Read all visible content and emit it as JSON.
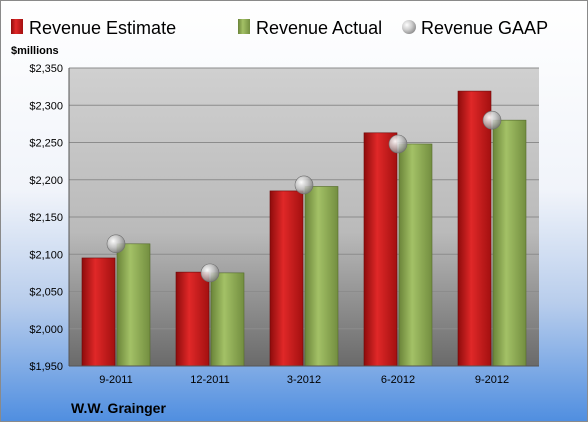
{
  "chart_data": {
    "type": "bar",
    "unit_label": "$millions",
    "company": "W.W. Grainger",
    "categories": [
      "9-2011",
      "12-2011",
      "3-2012",
      "6-2012",
      "9-2012"
    ],
    "series": [
      {
        "name": "Revenue Estimate",
        "kind": "bar",
        "color": "#cc1a1a",
        "values": [
          2095,
          2076,
          2185,
          2263,
          2319
        ]
      },
      {
        "name": "Revenue Actual",
        "kind": "bar",
        "color": "#8fac55",
        "values": [
          2114,
          2075,
          2191,
          2248,
          2280
        ]
      },
      {
        "name": "Revenue GAAP",
        "kind": "marker",
        "color": "#b8b8b8",
        "values": [
          2114,
          2075,
          2193,
          2248,
          2280
        ]
      }
    ],
    "ylim": [
      1950,
      2350
    ],
    "yticks": [
      1950,
      2000,
      2050,
      2100,
      2150,
      2200,
      2250,
      2300,
      2350
    ],
    "ytick_labels": [
      "$1,950",
      "$2,000",
      "$2,050",
      "$2,100",
      "$2,150",
      "$2,200",
      "$2,250",
      "$2,300",
      "$2,350"
    ],
    "grid": true,
    "legend_position": "top"
  }
}
